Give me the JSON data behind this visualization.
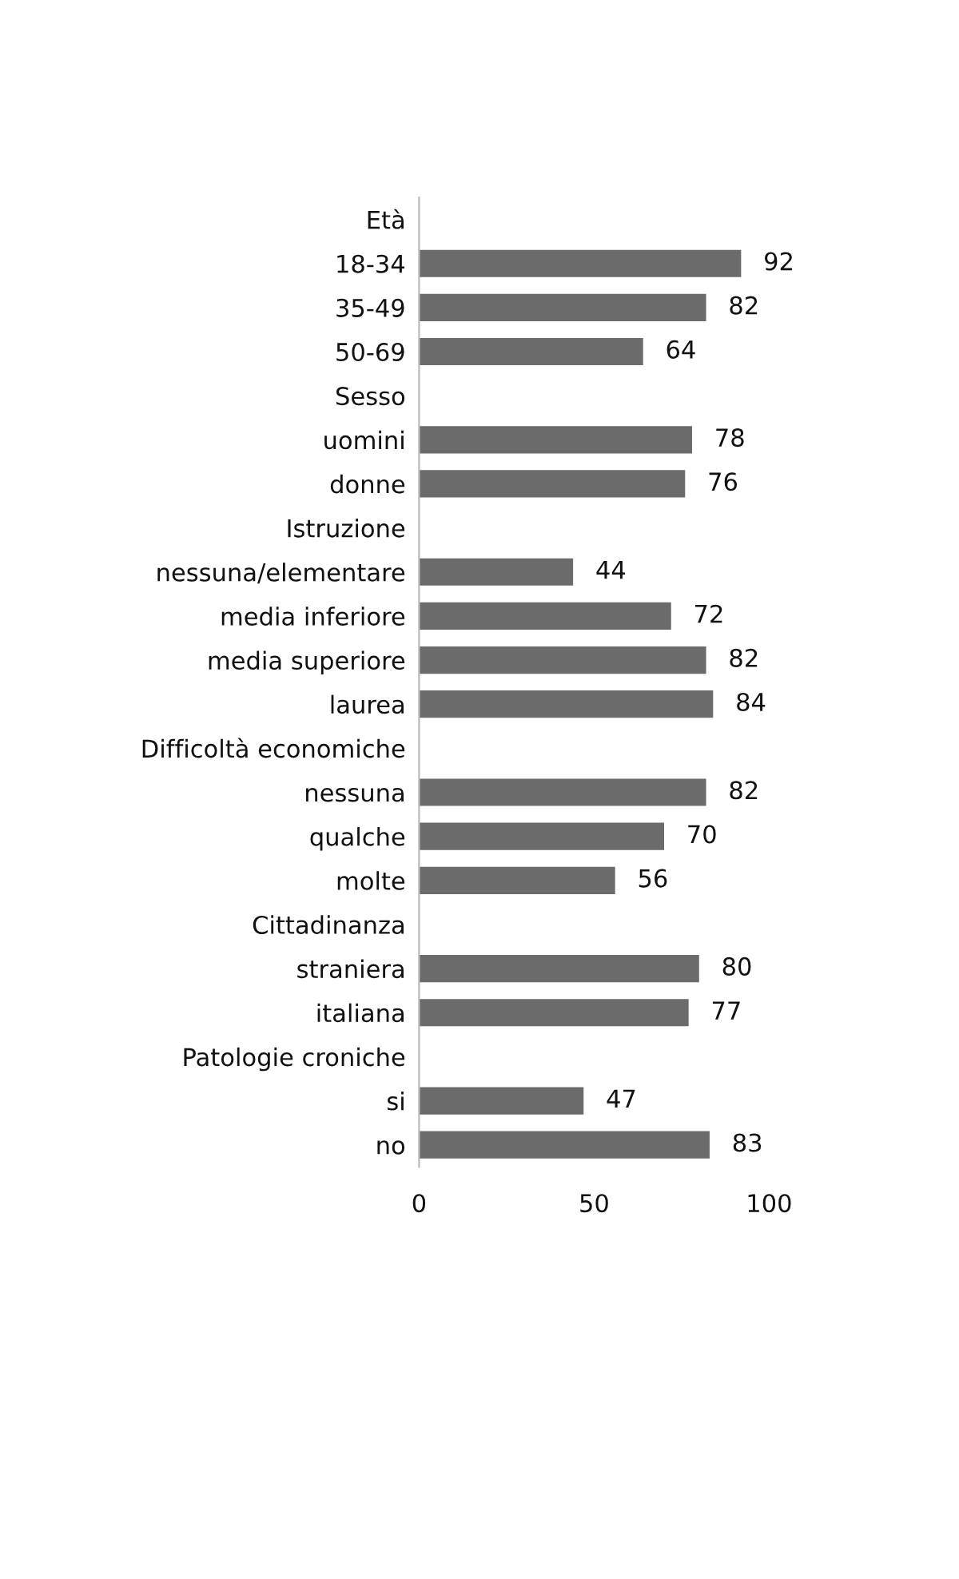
{
  "chart_data": {
    "type": "bar",
    "orientation": "horizontal",
    "categories": [
      "Età",
      "18-34",
      "35-49",
      "50-69",
      "Sesso",
      "uomini",
      "donne",
      "Istruzione",
      "nessuna/elementare",
      "media inferiore",
      "media superiore",
      "laurea",
      "Difficoltà economiche",
      "nessuna",
      "qualche",
      "molte",
      "Cittadinanza",
      "straniera",
      "italiana",
      "Patologie croniche",
      "si",
      "no"
    ],
    "values": [
      null,
      92,
      82,
      64,
      null,
      78,
      76,
      null,
      44,
      72,
      82,
      84,
      null,
      82,
      70,
      56,
      null,
      80,
      77,
      null,
      47,
      83
    ],
    "color": "#6b6b6b",
    "xlim": [
      0,
      100
    ],
    "xticks": [
      0,
      50,
      100
    ],
    "data_labels": true,
    "grid": false
  }
}
